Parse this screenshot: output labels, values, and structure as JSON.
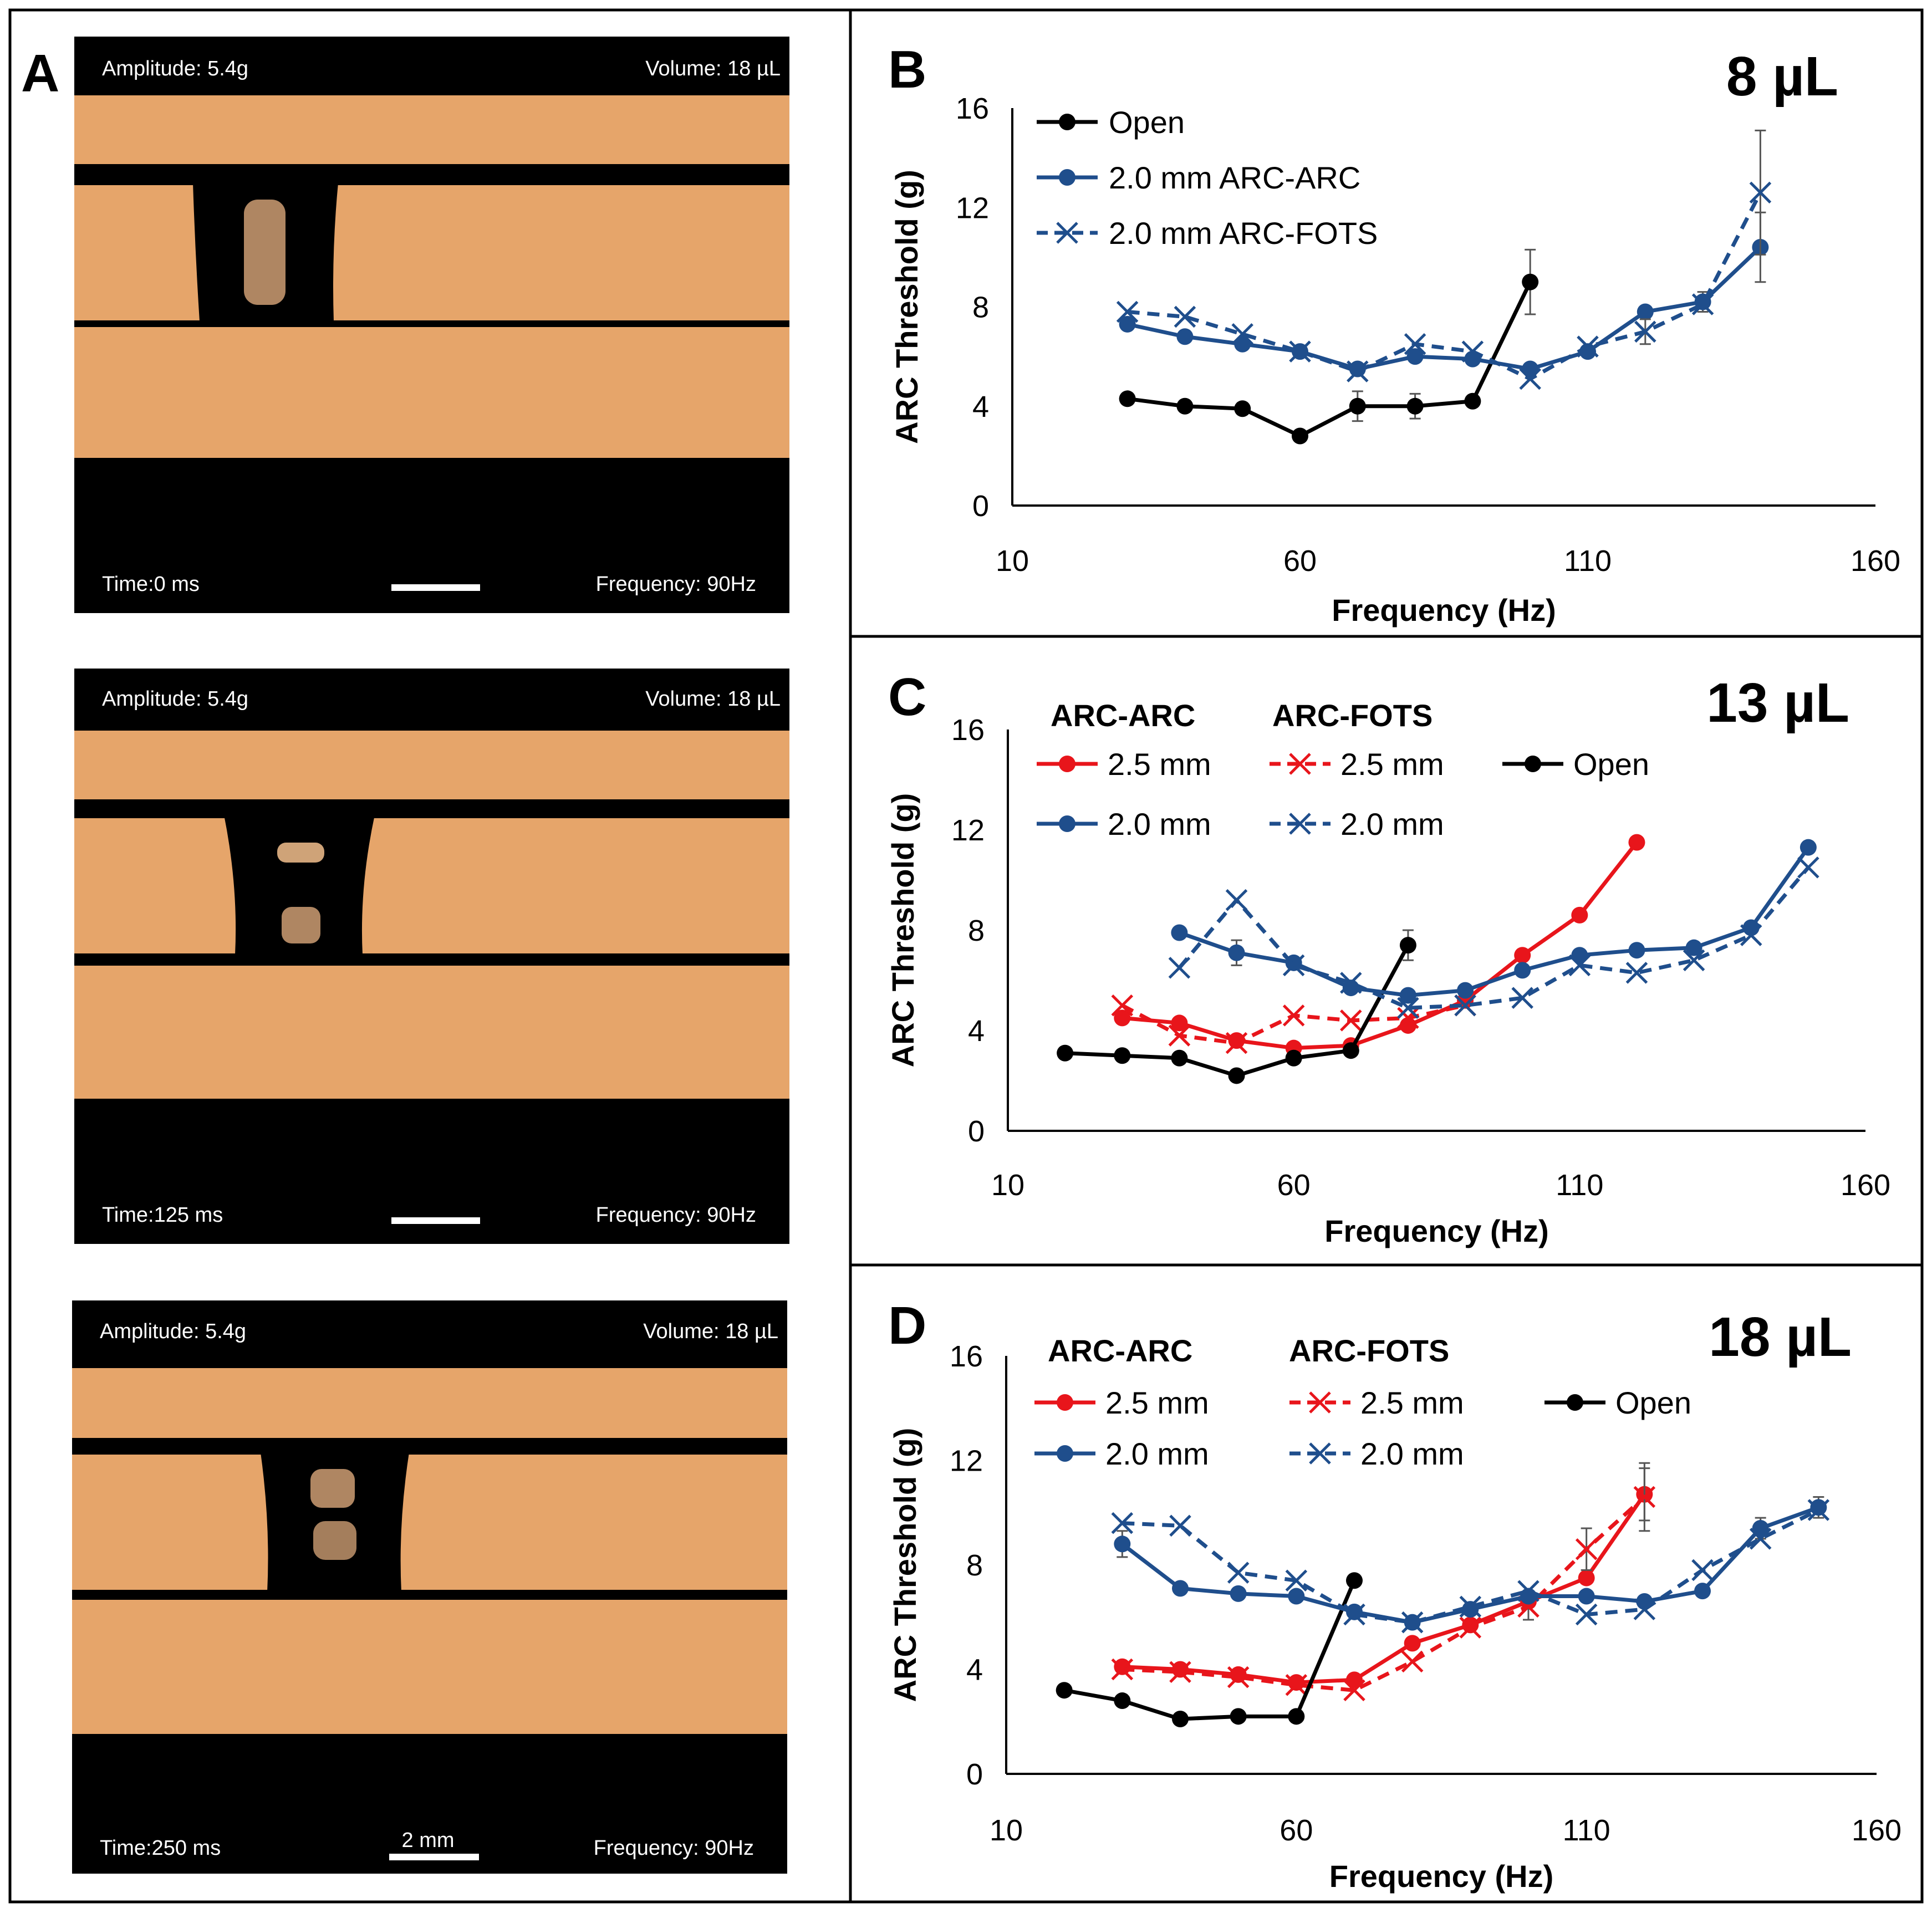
{
  "panel_a": {
    "letter": "A",
    "frames": [
      {
        "amplitude": "Amplitude: 5.4g",
        "volume": "Volume: 18 µL",
        "time": "Time:0     ms",
        "frequency": "Frequency: 90Hz",
        "scale_label": ""
      },
      {
        "amplitude": "Amplitude: 5.4g",
        "volume": "Volume: 18 µL",
        "time": "Time:125  ms",
        "frequency": "Frequency: 90Hz",
        "scale_label": ""
      },
      {
        "amplitude": "Amplitude: 5.4g",
        "volume": "Volume: 18 µL",
        "time": "Time:250  ms",
        "frequency": "Frequency: 90Hz",
        "scale_label": "2 mm"
      }
    ]
  },
  "colors": {
    "open": "#000000",
    "blue": "#1f4e8c",
    "red": "#e8151b",
    "frame_bg": "#000000",
    "bar": "#e6a56a"
  },
  "chart_data": [
    {
      "id": "B",
      "type": "line",
      "title": "8 µL",
      "xlabel": "Frequency (Hz)",
      "ylabel": "ARC Threshold (g)",
      "xlim": [
        10,
        160
      ],
      "ylim": [
        0,
        16
      ],
      "xticks": [
        10,
        60,
        110,
        160
      ],
      "yticks": [
        0,
        4,
        8,
        12,
        16
      ],
      "legend_headers": [],
      "series": [
        {
          "name": "Open",
          "label": "Open",
          "color": "black",
          "marker": "dot",
          "dashed": false,
          "x": [
            30,
            40,
            50,
            60,
            70,
            80,
            90,
            100
          ],
          "y": [
            4.3,
            4.0,
            3.9,
            2.8,
            4.0,
            4.0,
            4.2,
            9.0
          ],
          "err": [
            0,
            0,
            0,
            0,
            0.6,
            0.5,
            0,
            1.3
          ]
        },
        {
          "name": "2.0 mm ARC-ARC",
          "label": "2.0 mm ARC-ARC",
          "color": "blue",
          "marker": "dot",
          "dashed": false,
          "x": [
            30,
            40,
            50,
            60,
            70,
            80,
            90,
            100,
            110,
            120,
            130,
            140
          ],
          "y": [
            7.3,
            6.8,
            6.5,
            6.2,
            5.5,
            6.0,
            5.9,
            5.5,
            6.2,
            7.8,
            8.2,
            10.4
          ],
          "err": [
            0,
            0,
            0,
            0,
            0,
            0,
            0,
            0,
            0,
            0,
            0.4,
            1.4
          ]
        },
        {
          "name": "2.0 mm ARC-FOTS",
          "label": "2.0 mm ARC-FOTS",
          "color": "blue",
          "marker": "x",
          "dashed": true,
          "x": [
            30,
            40,
            50,
            60,
            70,
            80,
            90,
            100,
            110,
            120,
            130,
            140
          ],
          "y": [
            7.8,
            7.6,
            6.9,
            6.2,
            5.4,
            6.5,
            6.2,
            5.1,
            6.4,
            7.0,
            8.1,
            12.6
          ],
          "err": [
            0,
            0,
            0,
            0,
            0,
            0,
            0,
            0,
            0,
            0.5,
            0,
            2.5
          ]
        }
      ]
    },
    {
      "id": "C",
      "type": "line",
      "title": "13 µL",
      "xlabel": "Frequency (Hz)",
      "ylabel": "ARC Threshold (g)",
      "xlim": [
        10,
        160
      ],
      "ylim": [
        0,
        16
      ],
      "xticks": [
        10,
        60,
        110,
        160
      ],
      "yticks": [
        0,
        4,
        8,
        12,
        16
      ],
      "legend_headers": [
        "ARC-ARC",
        "ARC-FOTS"
      ],
      "series": [
        {
          "name": "ARC-ARC 2.5 mm",
          "label": "2.5 mm",
          "color": "red",
          "marker": "dot",
          "dashed": false,
          "x": [
            30,
            40,
            50,
            60,
            70,
            80,
            90,
            100,
            110,
            120
          ],
          "y": [
            4.5,
            4.3,
            3.6,
            3.3,
            3.4,
            4.2,
            5.2,
            7.0,
            8.6,
            11.5
          ],
          "err": [
            0,
            0,
            0,
            0,
            0,
            0,
            0,
            0,
            0,
            0
          ]
        },
        {
          "name": "ARC-FOTS 2.5 mm",
          "label": "2.5 mm",
          "color": "red",
          "marker": "x",
          "dashed": true,
          "x": [
            30,
            40,
            50,
            60,
            70,
            80,
            90
          ],
          "y": [
            5.0,
            3.8,
            3.5,
            4.6,
            4.4,
            4.5,
            5.0
          ],
          "err": [
            0,
            0,
            0,
            0,
            0,
            0,
            0
          ]
        },
        {
          "name": "Open",
          "label": "Open",
          "color": "black",
          "marker": "dot",
          "dashed": false,
          "x": [
            20,
            30,
            40,
            50,
            60,
            70,
            80
          ],
          "y": [
            3.1,
            3.0,
            2.9,
            2.2,
            2.9,
            3.2,
            7.4
          ],
          "err": [
            0,
            0,
            0,
            0,
            0,
            0,
            0.6
          ]
        },
        {
          "name": "ARC-ARC 2.0 mm",
          "label": "2.0 mm",
          "color": "blue",
          "marker": "dot",
          "dashed": false,
          "x": [
            40,
            50,
            60,
            70,
            80,
            90,
            100,
            110,
            120,
            130,
            140,
            150
          ],
          "y": [
            7.9,
            7.1,
            6.7,
            5.7,
            5.4,
            5.6,
            6.4,
            7.0,
            7.2,
            7.3,
            8.1,
            11.3
          ],
          "err": [
            0,
            0.5,
            0,
            0,
            0,
            0,
            0,
            0,
            0,
            0,
            0,
            0
          ]
        },
        {
          "name": "ARC-FOTS 2.0 mm",
          "label": "2.0 mm",
          "color": "blue",
          "marker": "x",
          "dashed": true,
          "x": [
            40,
            50,
            60,
            70,
            80,
            90,
            100,
            110,
            120,
            130,
            140,
            150
          ],
          "y": [
            6.5,
            9.2,
            6.6,
            5.9,
            4.9,
            5.0,
            5.3,
            6.6,
            6.3,
            6.8,
            7.8,
            10.5
          ],
          "err": [
            0,
            0,
            0,
            0,
            0,
            0,
            0,
            0,
            0,
            0,
            0,
            0
          ]
        }
      ]
    },
    {
      "id": "D",
      "type": "line",
      "title": "18 µL",
      "xlabel": "Frequency (Hz)",
      "ylabel": "ARC Threshold (g)",
      "xlim": [
        10,
        160
      ],
      "ylim": [
        0,
        16
      ],
      "xticks": [
        10,
        60,
        110,
        160
      ],
      "yticks": [
        0,
        4,
        8,
        12,
        16
      ],
      "legend_headers": [
        "ARC-ARC",
        "ARC-FOTS"
      ],
      "series": [
        {
          "name": "ARC-ARC 2.5 mm",
          "label": "2.5 mm",
          "color": "red",
          "marker": "dot",
          "dashed": false,
          "x": [
            30,
            40,
            50,
            60,
            70,
            80,
            90,
            100,
            110,
            120
          ],
          "y": [
            4.1,
            4.0,
            3.8,
            3.5,
            3.6,
            5.0,
            5.7,
            6.6,
            7.5,
            10.7
          ],
          "err": [
            0,
            0,
            0,
            0,
            0,
            0,
            0,
            0,
            0,
            1.0
          ]
        },
        {
          "name": "ARC-FOTS 2.5 mm",
          "label": "2.5 mm",
          "color": "red",
          "marker": "x",
          "dashed": true,
          "x": [
            30,
            40,
            50,
            60,
            70,
            80,
            90,
            100,
            110,
            120
          ],
          "y": [
            4.0,
            3.9,
            3.7,
            3.4,
            3.2,
            4.3,
            5.6,
            6.4,
            8.6,
            10.6
          ],
          "err": [
            0,
            0,
            0,
            0,
            0,
            0,
            0,
            0.5,
            0.8,
            1.3
          ]
        },
        {
          "name": "Open",
          "label": "Open",
          "color": "black",
          "marker": "dot",
          "dashed": false,
          "x": [
            20,
            30,
            40,
            50,
            60,
            70
          ],
          "y": [
            3.2,
            2.8,
            2.1,
            2.2,
            2.2,
            7.4
          ],
          "err": [
            0,
            0,
            0,
            0,
            0,
            0
          ]
        },
        {
          "name": "ARC-ARC 2.0 mm",
          "label": "2.0 mm",
          "color": "blue",
          "marker": "dot",
          "dashed": false,
          "x": [
            30,
            40,
            50,
            60,
            70,
            80,
            90,
            100,
            110,
            120,
            130,
            140,
            150
          ],
          "y": [
            8.8,
            7.1,
            6.9,
            6.8,
            6.2,
            5.8,
            6.3,
            6.8,
            6.8,
            6.6,
            7.0,
            9.4,
            10.2
          ],
          "err": [
            0.5,
            0,
            0,
            0,
            0,
            0,
            0,
            0,
            0,
            0,
            0,
            0.4,
            0.4
          ]
        },
        {
          "name": "ARC-FOTS 2.0 mm",
          "label": "2.0 mm",
          "color": "blue",
          "marker": "x",
          "dashed": true,
          "x": [
            30,
            40,
            50,
            60,
            70,
            80,
            90,
            100,
            110,
            120,
            130,
            140,
            150
          ],
          "y": [
            9.6,
            9.5,
            7.7,
            7.4,
            6.1,
            5.8,
            6.4,
            7.0,
            6.1,
            6.3,
            7.8,
            9.0,
            10.1
          ],
          "err": [
            0,
            0,
            0,
            0,
            0,
            0,
            0,
            0,
            0,
            0,
            0,
            0,
            0
          ]
        }
      ]
    }
  ]
}
